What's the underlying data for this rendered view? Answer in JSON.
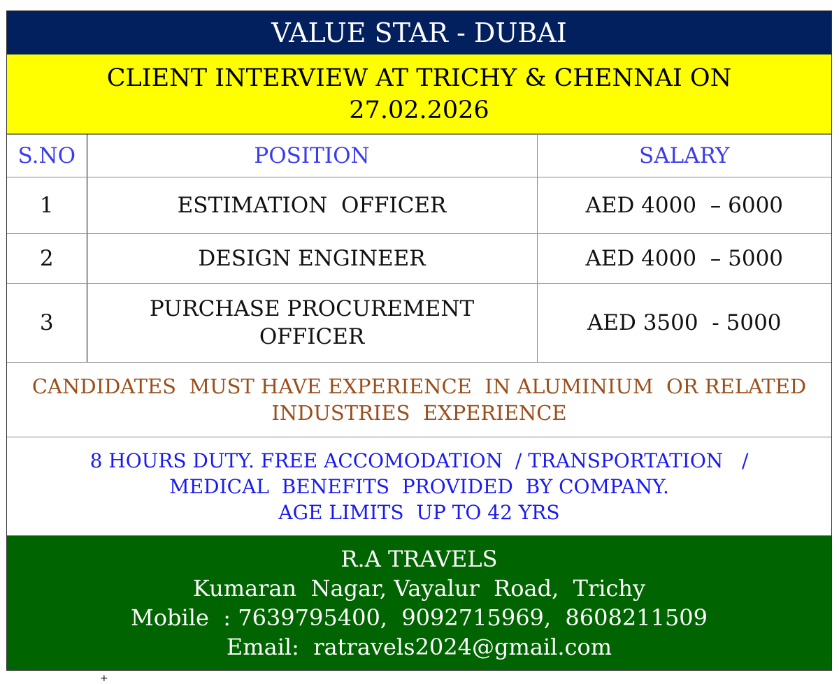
{
  "header": {
    "title": "VALUE STAR - DUBAI",
    "subtitle_line1": "CLIENT  INTERVIEW  AT TRICHY  & CHENNAI ON",
    "subtitle_line2": "27.02.2026"
  },
  "table": {
    "columns": [
      "S.NO",
      "POSITION",
      "SALARY"
    ],
    "rows": [
      {
        "sno": "1",
        "position": "ESTIMATION  OFFICER",
        "salary": "AED 4000  – 6000"
      },
      {
        "sno": "2",
        "position": "DESIGN ENGINEER",
        "salary": "AED 4000  – 5000"
      },
      {
        "sno": "3",
        "position": "PURCHASE  PROCUREMENT OFFICER",
        "salary": "AED 3500  - 5000"
      }
    ]
  },
  "requirements": {
    "line1": "CANDIDATES  MUST HAVE EXPERIENCE  IN ALUMINIUM  OR RELATED",
    "line2": "INDUSTRIES  EXPERIENCE"
  },
  "benefits": {
    "line1": "8 HOURS DUTY. FREE ACCOMODATION  / TRANSPORTATION   /",
    "line2": "MEDICAL  BENEFITS  PROVIDED  BY COMPANY.",
    "line3": "AGE LIMITS  UP TO 42 YRS"
  },
  "footer": {
    "agency": "R.A TRAVELS",
    "address": "Kumaran  Nagar, Vayalur  Road,  Trichy",
    "mobile": "Mobile  : 7639795400,  9092715969,  8608211509",
    "email": "Email:  ratravels2024@gmail.com"
  },
  "colors": {
    "title_bg": "#02205e",
    "subtitle_bg": "#ffff00",
    "header_text": "#3a3af0",
    "requirements_text": "#9a4e1a",
    "benefits_text": "#1a1af0",
    "footer_bg": "#006400"
  }
}
